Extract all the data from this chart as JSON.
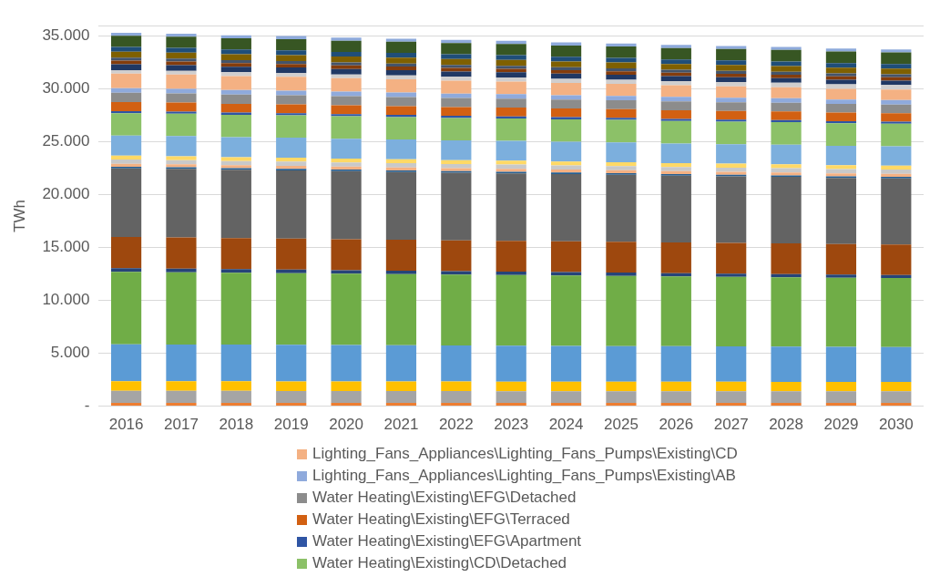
{
  "chart_data": {
    "type": "bar",
    "stacked": true,
    "ylabel": "TWh",
    "categories": [
      "2016",
      "2017",
      "2018",
      "2019",
      "2020",
      "2021",
      "2022",
      "2023",
      "2024",
      "2025",
      "2026",
      "2027",
      "2028",
      "2029",
      "2030"
    ],
    "ylim": [
      0,
      36000
    ],
    "yticks": [
      {
        "value": 0,
        "label": "-"
      },
      {
        "value": 5000,
        "label": "5.000"
      },
      {
        "value": 10000,
        "label": "10.000"
      },
      {
        "value": 15000,
        "label": "15.000"
      },
      {
        "value": 20000,
        "label": "20.000"
      },
      {
        "value": 25000,
        "label": "25.000"
      },
      {
        "value": 30000,
        "label": "30.000"
      },
      {
        "value": 35000,
        "label": "35.000"
      },
      {
        "value": 36000,
        "label": null
      }
    ],
    "grid": "y",
    "legend": "bottom",
    "series": [
      {
        "color": "#ed7d31",
        "values": [
          300,
          300,
          300,
          300,
          300,
          300,
          300,
          300,
          300,
          300,
          300,
          300,
          300,
          300,
          300
        ]
      },
      {
        "color": "#a5a5a5",
        "values": [
          1150,
          1150,
          1150,
          1140,
          1140,
          1130,
          1130,
          1120,
          1120,
          1120,
          1110,
          1110,
          1100,
          1100,
          1100
        ]
      },
      {
        "color": "#ffc000",
        "values": [
          900,
          900,
          900,
          900,
          900,
          900,
          900,
          900,
          900,
          900,
          900,
          900,
          900,
          900,
          900
        ]
      },
      {
        "color": "#5b9bd5",
        "values": [
          3500,
          3490,
          3470,
          3460,
          3440,
          3430,
          3410,
          3400,
          3390,
          3370,
          3360,
          3340,
          3330,
          3310,
          3300
        ]
      },
      {
        "color": "#70ad47",
        "values": [
          6850,
          6830,
          6800,
          6780,
          6760,
          6730,
          6710,
          6690,
          6660,
          6640,
          6610,
          6590,
          6570,
          6540,
          6520
        ]
      },
      {
        "color": "#264478",
        "values": [
          350,
          350,
          340,
          340,
          330,
          330,
          320,
          320,
          310,
          310,
          300,
          300,
          300,
          290,
          290
        ]
      },
      {
        "color": "#9e480e",
        "values": [
          2950,
          2950,
          2940,
          2940,
          2930,
          2930,
          2920,
          2920,
          2910,
          2910,
          2900,
          2900,
          2900,
          2890,
          2890
        ]
      },
      {
        "color": "#636363",
        "values": [
          6500,
          6480,
          6460,
          6450,
          6430,
          6410,
          6390,
          6380,
          6360,
          6340,
          6320,
          6300,
          6290,
          6270,
          6250
        ]
      },
      {
        "color": "#255e91",
        "values": [
          150,
          150,
          150,
          150,
          150,
          150,
          150,
          150,
          150,
          150,
          150,
          150,
          150,
          150,
          150
        ]
      },
      {
        "color": "#f4b183",
        "values": [
          280,
          280,
          280,
          280,
          280,
          280,
          280,
          280,
          280,
          280,
          280,
          280,
          280,
          280,
          280
        ]
      },
      {
        "color": "#c9c9c9",
        "values": [
          400,
          400,
          400,
          400,
          400,
          400,
          400,
          400,
          400,
          400,
          400,
          400,
          400,
          400,
          400
        ]
      },
      {
        "color": "#ffd966",
        "values": [
          370,
          370,
          370,
          370,
          370,
          370,
          370,
          370,
          370,
          370,
          370,
          370,
          370,
          370,
          370
        ]
      },
      {
        "color": "#7cafdd",
        "values": [
          1900,
          1900,
          1890,
          1890,
          1880,
          1880,
          1870,
          1870,
          1860,
          1860,
          1850,
          1850,
          1850,
          1840,
          1840
        ]
      },
      {
        "name": "Water Heating\\Existing\\CD\\Detached",
        "color": "#8cc168",
        "values": [
          2120,
          2120,
          2120,
          2120,
          2120,
          2120,
          2120,
          2120,
          2130,
          2130,
          2130,
          2130,
          2130,
          2130,
          2130
        ]
      },
      {
        "name": "Water Heating\\Existing\\EFG\\Apartment",
        "color": "#2f55a4",
        "values": [
          200,
          200,
          200,
          200,
          200,
          200,
          200,
          200,
          200,
          200,
          200,
          200,
          200,
          200,
          200
        ]
      },
      {
        "name": "Water Heating\\Existing\\EFG\\Terraced",
        "color": "#d26012",
        "values": [
          850,
          850,
          840,
          840,
          840,
          830,
          830,
          830,
          820,
          820,
          820,
          810,
          810,
          800,
          800
        ]
      },
      {
        "name": "Water Heating\\Existing\\EFG\\Detached",
        "color": "#8c8c8c",
        "values": [
          880,
          880,
          870,
          870,
          860,
          860,
          850,
          850,
          850,
          840,
          840,
          830,
          830,
          820,
          820
        ]
      },
      {
        "name": "Lighting_Fans_Appliances\\Lighting_Fans_Pumps\\Existing\\AB",
        "color": "#8faadc",
        "values": [
          430,
          430,
          430,
          430,
          430,
          430,
          430,
          430,
          420,
          420,
          420,
          420,
          420,
          420,
          420
        ]
      },
      {
        "name": "Lighting_Fans_Appliances\\Lighting_Fans_Pumps\\Existing\\CD",
        "color": "#f4b183",
        "values": [
          1380,
          1350,
          1330,
          1300,
          1270,
          1240,
          1210,
          1190,
          1160,
          1130,
          1100,
          1080,
          1050,
          1020,
          990
        ]
      },
      {
        "color": "#d0cece",
        "values": [
          340,
          350,
          350,
          360,
          360,
          370,
          380,
          380,
          390,
          400,
          400,
          410,
          420,
          420,
          430
        ]
      },
      {
        "color": "#203864",
        "values": [
          550,
          540,
          530,
          520,
          510,
          510,
          500,
          490,
          480,
          470,
          460,
          450,
          440,
          430,
          420
        ]
      },
      {
        "color": "#843c0c",
        "values": [
          340,
          340,
          340,
          340,
          340,
          340,
          340,
          340,
          330,
          330,
          330,
          330,
          330,
          330,
          330
        ]
      },
      {
        "color": "#44546a",
        "values": [
          280,
          280,
          280,
          280,
          280,
          280,
          280,
          280,
          280,
          280,
          280,
          280,
          280,
          280,
          280
        ]
      },
      {
        "color": "#7f6000",
        "values": [
          570,
          570,
          570,
          560,
          560,
          560,
          560,
          560,
          550,
          550,
          550,
          550,
          540,
          540,
          540
        ]
      },
      {
        "color": "#1f4e79",
        "values": [
          450,
          450,
          450,
          450,
          440,
          440,
          440,
          440,
          440,
          440,
          430,
          430,
          430,
          430,
          430
        ]
      },
      {
        "color": "#375623",
        "values": [
          1050,
          1050,
          1050,
          1060,
          1060,
          1060,
          1070,
          1070,
          1070,
          1070,
          1080,
          1080,
          1080,
          1090,
          1090
        ]
      },
      {
        "color": "#8eaadb",
        "values": [
          290,
          290,
          290,
          290,
          290,
          290,
          290,
          290,
          290,
          290,
          290,
          290,
          290,
          290,
          290
        ]
      }
    ]
  }
}
